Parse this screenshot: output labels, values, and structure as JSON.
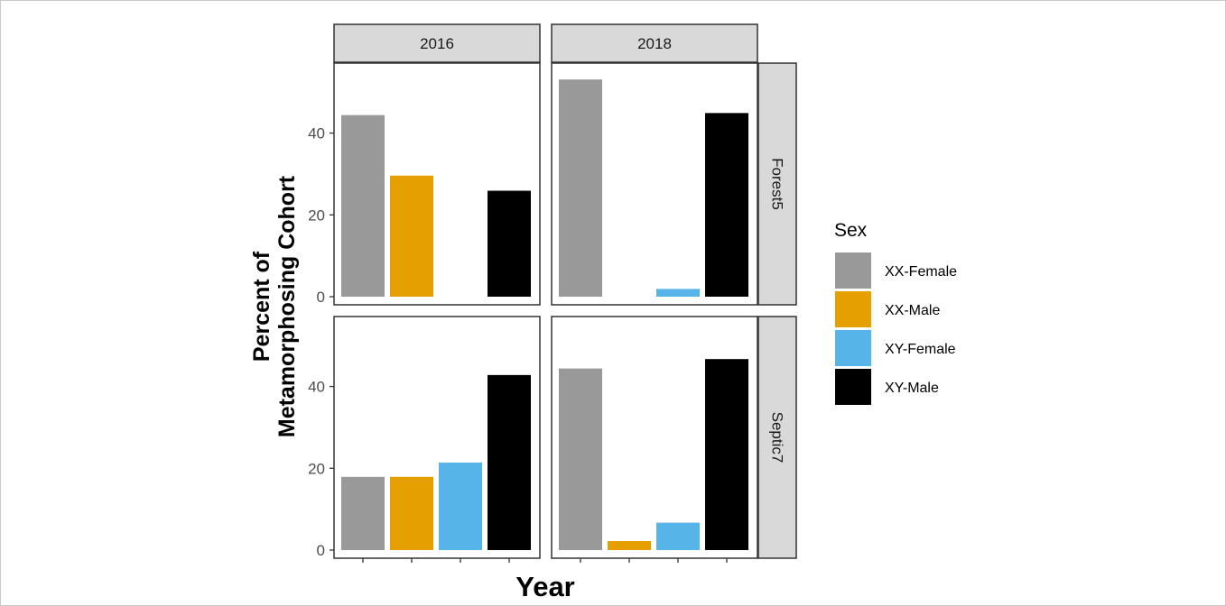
{
  "chart_data": {
    "type": "bar",
    "ylabel_lines": [
      "Percent of",
      "Metamorphosing Cohort"
    ],
    "xlabel": "Year",
    "ylim": [
      0,
      56
    ],
    "yticks": [
      0,
      20,
      40
    ],
    "columns": [
      "2016",
      "2018"
    ],
    "rows": [
      "Forest5",
      "Septic7"
    ],
    "legend": {
      "title": "Sex",
      "position": "right",
      "entries": [
        {
          "name": "XX-Female",
          "color": "#999999"
        },
        {
          "name": "XX-Male",
          "color": "#E69F00"
        },
        {
          "name": "XY-Female",
          "color": "#56B4E9"
        },
        {
          "name": "XY-Male",
          "color": "#000000"
        }
      ]
    },
    "categories": [
      "XX-Female",
      "XX-Male",
      "XY-Female",
      "XY-Male"
    ],
    "panels": [
      {
        "row": "Forest5",
        "col": "2016",
        "values": [
          44.4,
          29.6,
          0,
          25.9
        ]
      },
      {
        "row": "Forest5",
        "col": "2018",
        "values": [
          53.1,
          0,
          1.9,
          44.9
        ]
      },
      {
        "row": "Septic7",
        "col": "2016",
        "values": [
          17.9,
          17.9,
          21.4,
          42.8
        ]
      },
      {
        "row": "Septic7",
        "col": "2018",
        "values": [
          44.4,
          2.2,
          6.7,
          46.7
        ]
      }
    ]
  }
}
